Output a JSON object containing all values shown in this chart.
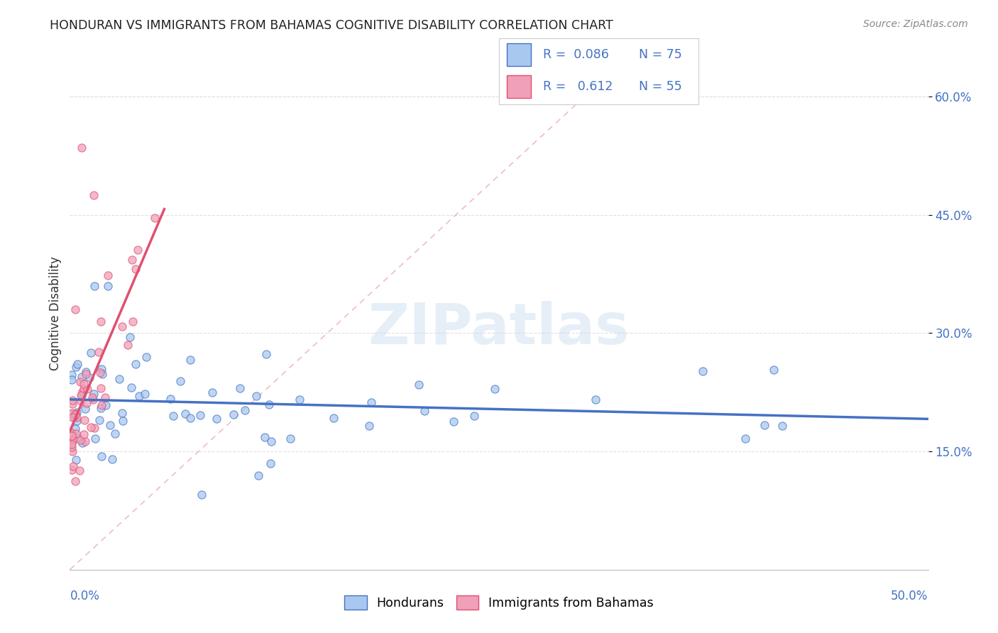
{
  "title": "HONDURAN VS IMMIGRANTS FROM BAHAMAS COGNITIVE DISABILITY CORRELATION CHART",
  "source": "Source: ZipAtlas.com",
  "ylabel": "Cognitive Disability",
  "x_range": [
    0.0,
    0.5
  ],
  "y_range": [
    0.0,
    0.65
  ],
  "hondurans_R": 0.086,
  "hondurans_N": 75,
  "bahamas_R": 0.612,
  "bahamas_N": 55,
  "scatter_color_hondurans": "#A8C8F0",
  "scatter_color_bahamas": "#F0A0B8",
  "line_color_hondurans": "#4472C4",
  "line_color_bahamas": "#E05070",
  "line_color_diagonal": "#E8A0B0",
  "background_color": "#FFFFFF",
  "grid_color": "#E0E0E0",
  "title_color": "#222222",
  "source_color": "#888888",
  "legend_text_color": "#4472C4",
  "y_tick_vals": [
    0.15,
    0.3,
    0.45,
    0.6
  ],
  "y_tick_labs": [
    "15.0%",
    "30.0%",
    "45.0%",
    "60.0%"
  ]
}
